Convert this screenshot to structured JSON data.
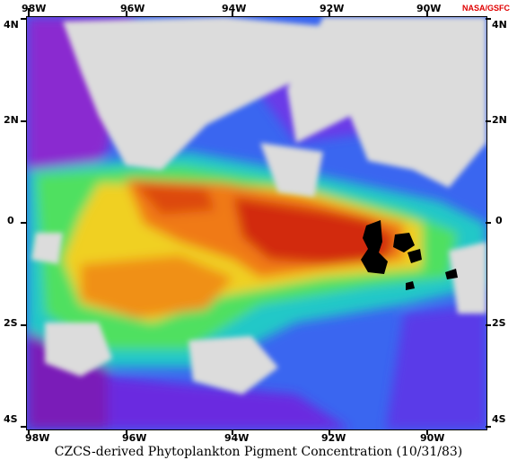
{
  "credit": "NASA/GSFC",
  "caption": "CZCS-derived Phytoplankton Pigment Concentration (10/31/83)",
  "longitude_labels": [
    "98W",
    "96W",
    "94W",
    "92W",
    "90W"
  ],
  "latitude_labels": [
    "4N",
    "2N",
    "0",
    "2S",
    "4S"
  ],
  "colors": {
    "very_low": "#7a1fb8",
    "low": "#2d5ff0",
    "mid_low": "#19b7e0",
    "mid": "#3fe36a",
    "mid_high": "#f2c21a",
    "high": "#f06a10",
    "very_high": "#c81c10",
    "cloud": "#d9d9d9",
    "land": "#000000"
  }
}
